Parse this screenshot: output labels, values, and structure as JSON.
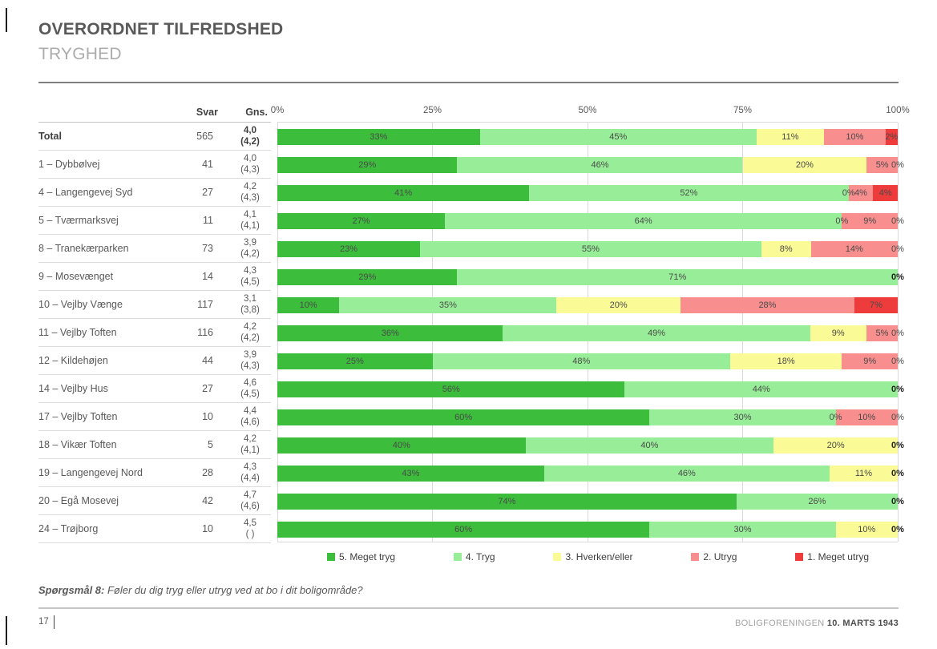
{
  "header": {
    "title": "OVERORDNET TILFREDSHED",
    "subtitle": "TRYGHED"
  },
  "table": {
    "columns": {
      "svar": "Svar",
      "gns": "Gns."
    }
  },
  "chart_data": {
    "type": "bar",
    "stacked": true,
    "orientation": "horizontal",
    "x_axis": {
      "ticks": [
        "0%",
        "25%",
        "50%",
        "75%",
        "100%"
      ],
      "range": [
        0,
        100
      ],
      "grid": true
    },
    "legend_position": "bottom",
    "series": [
      {
        "name": "5. Meget tryg",
        "color": "#3CBE3C"
      },
      {
        "name": "4. Tryg",
        "color": "#98EE98"
      },
      {
        "name": "3. Hverken/eller",
        "color": "#FAFA96"
      },
      {
        "name": "2. Utryg",
        "color": "#F88E8E"
      },
      {
        "name": "1. Meget utryg",
        "color": "#EE3C3C"
      }
    ],
    "rows": [
      {
        "label": "Total",
        "svar": "565",
        "gns": "4,0",
        "gns2": "(4,2)",
        "bold": true,
        "values": [
          33,
          45,
          11,
          10,
          2
        ]
      },
      {
        "label": "1 – Dybbølvej",
        "svar": "41",
        "gns": "4,0",
        "gns2": "(4,3)",
        "bold": false,
        "values": [
          29,
          46,
          20,
          5,
          0
        ]
      },
      {
        "label": "4 – Langengevej Syd",
        "svar": "27",
        "gns": "4,2",
        "gns2": "(4,3)",
        "bold": false,
        "values": [
          41,
          52,
          0,
          4,
          4
        ]
      },
      {
        "label": "5 – Tværmarksvej",
        "svar": "11",
        "gns": "4,1",
        "gns2": "(4,1)",
        "bold": false,
        "values": [
          27,
          64,
          0,
          9,
          0
        ]
      },
      {
        "label": "8 – Tranekærparken",
        "svar": "73",
        "gns": "3,9",
        "gns2": "(4,2)",
        "bold": false,
        "values": [
          23,
          55,
          8,
          14,
          0
        ]
      },
      {
        "label": "9 – Mosevænget",
        "svar": "14",
        "gns": "4,3",
        "gns2": "(4,5)",
        "bold": false,
        "values": [
          29,
          71,
          0,
          0,
          0
        ]
      },
      {
        "label": "10 – Vejlby Vænge",
        "svar": "117",
        "gns": "3,1",
        "gns2": "(3,8)",
        "bold": false,
        "values": [
          10,
          35,
          20,
          28,
          7
        ]
      },
      {
        "label": "11 – Vejlby Toften",
        "svar": "116",
        "gns": "4,2",
        "gns2": "(4,2)",
        "bold": false,
        "values": [
          36,
          49,
          9,
          5,
          0
        ]
      },
      {
        "label": "12 – Kildehøjen",
        "svar": "44",
        "gns": "3,9",
        "gns2": "(4,3)",
        "bold": false,
        "values": [
          25,
          48,
          18,
          9,
          0
        ]
      },
      {
        "label": "14 – Vejlby Hus",
        "svar": "27",
        "gns": "4,6",
        "gns2": "(4,5)",
        "bold": false,
        "values": [
          56,
          44,
          0,
          0,
          0
        ]
      },
      {
        "label": "17 – Vejlby Toften",
        "svar": "10",
        "gns": "4,4",
        "gns2": "(4,6)",
        "bold": false,
        "values": [
          60,
          30,
          0,
          10,
          0
        ]
      },
      {
        "label": "18 – Vikær Toften",
        "svar": "5",
        "gns": "4,2",
        "gns2": "(4,1)",
        "bold": false,
        "values": [
          40,
          40,
          20,
          0,
          0
        ]
      },
      {
        "label": "19 – Langengevej Nord",
        "svar": "28",
        "gns": "4,3",
        "gns2": "(4,4)",
        "bold": false,
        "values": [
          43,
          46,
          11,
          0,
          0
        ]
      },
      {
        "label": "20 – Egå Mosevej",
        "svar": "42",
        "gns": "4,7",
        "gns2": "(4,6)",
        "bold": false,
        "values": [
          74,
          26,
          0,
          0,
          0
        ]
      },
      {
        "label": "24 – Trøjborg",
        "svar": "10",
        "gns": "4,5",
        "gns2": "( )",
        "bold": false,
        "values": [
          60,
          30,
          10,
          0,
          0
        ]
      }
    ]
  },
  "footnote": {
    "prefix": "Spørgsmål 8:",
    "text": "Føler du dig tryg eller utryg ved at bo i dit boligområde?"
  },
  "footer": {
    "page": "17",
    "org": "BOLIGFORENINGEN",
    "date": "10. MARTS 1943"
  }
}
